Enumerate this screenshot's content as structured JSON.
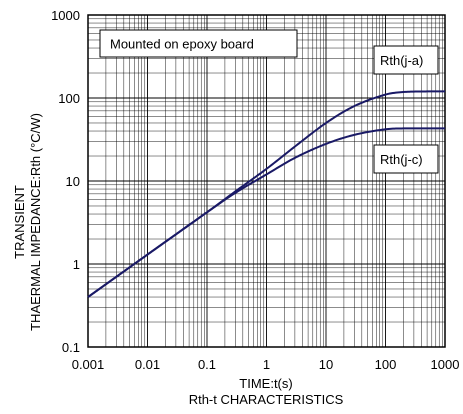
{
  "chart_data": {
    "type": "line",
    "title": "Rth-t CHARACTERISTICS",
    "xlabel": "TIME:t(s)",
    "ylabel_lines": [
      "TRANSIENT",
      "THAERMAL IMPEDANCE:Rth (°C/W)"
    ],
    "x_scale": "log",
    "y_scale": "log",
    "xlim": [
      0.001,
      1000
    ],
    "ylim": [
      0.1,
      1000
    ],
    "x_ticks": [
      "0.001",
      "0.01",
      "0.1",
      "1",
      "10",
      "100",
      "1000"
    ],
    "y_ticks": [
      "0.1",
      "1",
      "10",
      "100",
      "1000"
    ],
    "grid": true,
    "annotation": "Mounted on epoxy board",
    "series": [
      {
        "name": "Rth(j-a)",
        "color": "#1a1a66",
        "x": [
          0.001,
          0.01,
          0.1,
          0.3,
          1,
          3,
          10,
          30,
          100,
          200,
          500,
          1000
        ],
        "y": [
          0.4,
          1.3,
          4.2,
          7.5,
          14,
          26,
          50,
          80,
          110,
          118,
          120,
          120
        ]
      },
      {
        "name": "Rth(j-c)",
        "color": "#1a1a66",
        "x": [
          0.001,
          0.01,
          0.1,
          0.3,
          1,
          3,
          10,
          30,
          100,
          200,
          500,
          1000
        ],
        "y": [
          0.4,
          1.3,
          4.2,
          7.2,
          12,
          19,
          28,
          36,
          42,
          43,
          43,
          43
        ]
      }
    ]
  }
}
